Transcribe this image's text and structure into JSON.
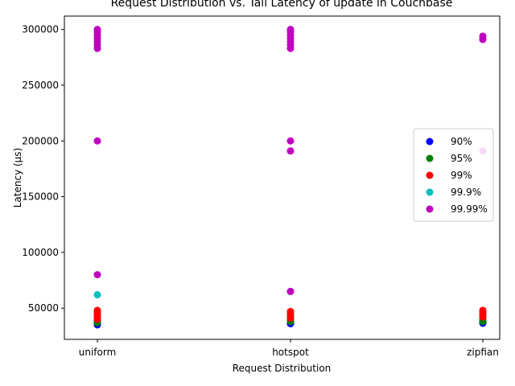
{
  "chart_data": {
    "type": "scatter",
    "title": "Request Distribution vs. Tail Latency of update in Couchbase",
    "xlabel": "Request Distribution",
    "ylabel": "Latency (µs)",
    "categories": [
      "uniform",
      "hotspot",
      "zipfian"
    ],
    "ylim": [
      22000,
      312000
    ],
    "yticks": [
      50000,
      100000,
      150000,
      200000,
      250000,
      300000
    ],
    "ytick_labels": [
      "50000",
      "100000",
      "150000",
      "200000",
      "250000",
      "300000"
    ],
    "grid": false,
    "legend_position": "right",
    "series": [
      {
        "name": "90%",
        "color": "#0000ff",
        "points": [
          {
            "x": "uniform",
            "y": 35000
          },
          {
            "x": "uniform",
            "y": 36000
          },
          {
            "x": "uniform",
            "y": 37000
          },
          {
            "x": "uniform",
            "y": 38000
          },
          {
            "x": "hotspot",
            "y": 36000
          },
          {
            "x": "hotspot",
            "y": 37000
          },
          {
            "x": "hotspot",
            "y": 38000
          },
          {
            "x": "zipfian",
            "y": 36500
          },
          {
            "x": "zipfian",
            "y": 37500
          }
        ]
      },
      {
        "name": "95%",
        "color": "#008000",
        "points": [
          {
            "x": "uniform",
            "y": 37000
          },
          {
            "x": "uniform",
            "y": 38000
          },
          {
            "x": "uniform",
            "y": 39000
          },
          {
            "x": "uniform",
            "y": 40000
          },
          {
            "x": "hotspot",
            "y": 38000
          },
          {
            "x": "hotspot",
            "y": 39000
          },
          {
            "x": "hotspot",
            "y": 40000
          },
          {
            "x": "hotspot",
            "y": 41000
          },
          {
            "x": "zipfian",
            "y": 38000
          },
          {
            "x": "zipfian",
            "y": 39000
          },
          {
            "x": "zipfian",
            "y": 40000
          }
        ]
      },
      {
        "name": "99%",
        "color": "#ff0000",
        "points": [
          {
            "x": "uniform",
            "y": 40000
          },
          {
            "x": "uniform",
            "y": 42000
          },
          {
            "x": "uniform",
            "y": 44000
          },
          {
            "x": "uniform",
            "y": 46000
          },
          {
            "x": "uniform",
            "y": 48000
          },
          {
            "x": "hotspot",
            "y": 41000
          },
          {
            "x": "hotspot",
            "y": 43000
          },
          {
            "x": "hotspot",
            "y": 45000
          },
          {
            "x": "hotspot",
            "y": 47000
          },
          {
            "x": "zipfian",
            "y": 42000
          },
          {
            "x": "zipfian",
            "y": 44000
          },
          {
            "x": "zipfian",
            "y": 46000
          },
          {
            "x": "zipfian",
            "y": 48000
          }
        ]
      },
      {
        "name": "99.9%",
        "color": "#00bfbf",
        "points": [
          {
            "x": "uniform",
            "y": 62000
          },
          {
            "x": "hotspot",
            "y": 65000
          }
        ]
      },
      {
        "name": "99.99%",
        "color": "#bf00bf",
        "points": [
          {
            "x": "uniform",
            "y": 80000
          },
          {
            "x": "uniform",
            "y": 200000
          },
          {
            "x": "uniform",
            "y": 283000
          },
          {
            "x": "uniform",
            "y": 286000
          },
          {
            "x": "uniform",
            "y": 289000
          },
          {
            "x": "uniform",
            "y": 292000
          },
          {
            "x": "uniform",
            "y": 295000
          },
          {
            "x": "uniform",
            "y": 298000
          },
          {
            "x": "uniform",
            "y": 300000
          },
          {
            "x": "hotspot",
            "y": 65000
          },
          {
            "x": "hotspot",
            "y": 191000
          },
          {
            "x": "hotspot",
            "y": 200000
          },
          {
            "x": "hotspot",
            "y": 283000
          },
          {
            "x": "hotspot",
            "y": 286000
          },
          {
            "x": "hotspot",
            "y": 289000
          },
          {
            "x": "hotspot",
            "y": 292000
          },
          {
            "x": "hotspot",
            "y": 295000
          },
          {
            "x": "hotspot",
            "y": 298000
          },
          {
            "x": "hotspot",
            "y": 300000
          },
          {
            "x": "zipfian",
            "y": 191000
          },
          {
            "x": "zipfian",
            "y": 291000
          },
          {
            "x": "zipfian",
            "y": 294000
          }
        ]
      }
    ]
  }
}
